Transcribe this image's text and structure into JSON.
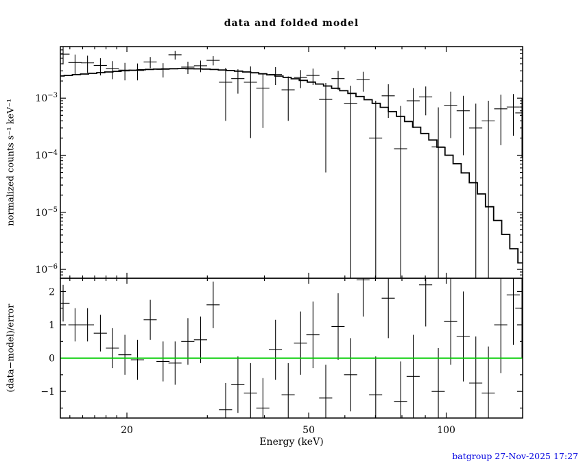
{
  "title": "data and folded model",
  "footer": {
    "text": "batgroup 27-Nov-2025 17:27",
    "color": "#0000e0"
  },
  "chart_data": {
    "type": "line",
    "title": "data and folded model",
    "xlabel": "Energy (keV)",
    "x_scale": "log",
    "x_range": [
      14.3,
      147.0
    ],
    "x_major_ticks": [
      20,
      50,
      100
    ],
    "x_minor_ticks": [
      15,
      16,
      17,
      18,
      19,
      30,
      40,
      60,
      70,
      80,
      90
    ],
    "ink_color": "#000000",
    "panels": [
      {
        "name": "spectrum",
        "ylabel": "normalized counts s⁻¹ keV⁻¹",
        "y_scale": "log",
        "y_range": [
          7e-07,
          0.008
        ],
        "y_major_ticks": [
          {
            "v": 0.001,
            "exp": "−3"
          },
          {
            "v": 0.0001,
            "exp": "−4"
          },
          {
            "v": 1e-05,
            "exp": "−5"
          },
          {
            "v": 1e-06,
            "exp": "−6"
          }
        ],
        "model_histogram": {
          "bin_edges": [
            14.0,
            14.58,
            15.19,
            15.83,
            16.49,
            17.18,
            17.89,
            18.64,
            19.42,
            20.23,
            21.07,
            21.95,
            22.86,
            23.82,
            24.81,
            25.84,
            26.92,
            28.04,
            29.21,
            30.43,
            31.7,
            33.02,
            34.39,
            35.83,
            37.32,
            38.87,
            40.49,
            42.18,
            43.94,
            45.77,
            47.68,
            49.66,
            51.73,
            53.89,
            56.13,
            58.47,
            60.91,
            63.45,
            66.09,
            68.84,
            71.71,
            74.7,
            77.81,
            81.05,
            84.43,
            87.94,
            91.61,
            95.42,
            99.4,
            103.54,
            107.85,
            112.34,
            117.02,
            121.9,
            126.98,
            132.27,
            137.78,
            143.52,
            149.5
          ],
          "values": [
            0.00245,
            0.0025,
            0.00258,
            0.00265,
            0.00272,
            0.0028,
            0.00288,
            0.00295,
            0.00302,
            0.00308,
            0.00314,
            0.00319,
            0.00323,
            0.00326,
            0.00328,
            0.00329,
            0.00328,
            0.00326,
            0.00323,
            0.00318,
            0.00312,
            0.00305,
            0.00297,
            0.00288,
            0.00278,
            0.00267,
            0.00256,
            0.00244,
            0.00231,
            0.00218,
            0.00205,
            0.00191,
            0.00177,
            0.00163,
            0.00149,
            0.00135,
            0.00121,
            0.00107,
            0.00094,
            0.00081,
            0.00069,
            0.00058,
            0.00048,
            0.00039,
            0.00031,
            0.00024,
            0.000185,
            0.000138,
            0.0001,
            7.1e-05,
            4.9e-05,
            3.3e-05,
            2.1e-05,
            1.25e-05,
            7.2e-06,
            4.1e-06,
            2.3e-06,
            1.3e-06
          ]
        },
        "data_points": {
          "e": [
            14.5,
            15.4,
            16.4,
            17.5,
            18.6,
            19.8,
            21.1,
            22.5,
            24.0,
            25.5,
            27.2,
            29.0,
            30.9,
            32.9,
            35.0,
            37.3,
            39.7,
            42.3,
            45.1,
            48.0,
            51.1,
            54.5,
            58.0,
            61.8,
            65.8,
            70.1,
            74.7,
            79.5,
            84.7,
            90.2,
            96.1,
            102.3,
            109.0,
            116.1,
            123.7,
            131.7,
            140.3,
            146.5
          ],
          "xerr": [
            0.48,
            0.51,
            0.54,
            0.58,
            0.61,
            0.65,
            0.7,
            0.74,
            0.79,
            0.84,
            0.9,
            0.96,
            1.02,
            1.09,
            1.16,
            1.23,
            1.31,
            1.4,
            1.49,
            1.58,
            1.69,
            1.8,
            1.91,
            2.04,
            2.17,
            2.31,
            2.46,
            2.62,
            2.79,
            2.98,
            3.17,
            3.38,
            3.6,
            3.83,
            4.08,
            4.35,
            4.63,
            4.84
          ],
          "y": [
            0.0059,
            0.0042,
            0.00415,
            0.00375,
            0.0033,
            0.0031,
            0.00305,
            0.0043,
            0.0032,
            0.00575,
            0.0035,
            0.0037,
            0.0046,
            0.0019,
            0.0022,
            0.0019,
            0.0015,
            0.0026,
            0.0014,
            0.0023,
            0.0025,
            0.00095,
            0.0022,
            0.0008,
            0.0021,
            0.0002,
            0.0011,
            0.00013,
            0.0009,
            0.00105,
            0.00014,
            0.00075,
            0.0006,
            0.0003,
            0.0004,
            0.00065,
            0.0007,
            0.00055
          ],
          "yerr": [
            0.002,
            0.0016,
            0.0014,
            0.00125,
            0.00115,
            0.00105,
            0.001,
            0.00095,
            0.0009,
            0.001,
            0.00085,
            0.00085,
            0.00085,
            0.0015,
            0.001,
            0.0017,
            0.0012,
            0.0009,
            0.001,
            0.0008,
            0.0008,
            0.0009,
            0.0008,
            0.00085,
            0.0008,
            0.0007,
            0.00065,
            0.0006,
            0.0006,
            0.00055,
            0.00055,
            0.00055,
            0.0005,
            0.0005,
            0.0005,
            0.0005,
            0.00048,
            0.00046
          ]
        }
      },
      {
        "name": "residuals",
        "ylabel": "(data−model)/error",
        "y_scale": "linear",
        "y_range": [
          -1.8,
          2.4
        ],
        "y_major_ticks": [
          -1,
          0,
          1,
          2
        ],
        "y_minor_ticks": [
          -1.5,
          -0.5,
          0.5,
          1.5
        ],
        "zero_line_color": "#00cc00",
        "points": {
          "e": [
            14.5,
            15.4,
            16.4,
            17.5,
            18.6,
            19.8,
            21.1,
            22.5,
            24.0,
            25.5,
            27.2,
            29.0,
            30.9,
            32.9,
            35.0,
            37.3,
            39.7,
            42.3,
            45.1,
            48.0,
            51.1,
            54.5,
            58.0,
            61.8,
            65.8,
            70.1,
            74.7,
            79.5,
            84.7,
            90.2,
            96.1,
            102.3,
            109.0,
            116.1,
            123.7,
            131.7,
            140.3,
            146.5
          ],
          "xerr": [
            0.48,
            0.51,
            0.54,
            0.58,
            0.61,
            0.65,
            0.7,
            0.74,
            0.79,
            0.84,
            0.9,
            0.96,
            1.02,
            1.09,
            1.16,
            1.23,
            1.31,
            1.4,
            1.49,
            1.58,
            1.69,
            1.8,
            1.91,
            2.04,
            2.17,
            2.31,
            2.46,
            2.62,
            2.79,
            2.98,
            3.17,
            3.38,
            3.6,
            3.83,
            4.08,
            4.35,
            4.63,
            4.84
          ],
          "y": [
            1.65,
            1.0,
            1.0,
            0.75,
            0.3,
            0.1,
            -0.05,
            1.15,
            -0.1,
            -0.15,
            0.5,
            0.55,
            1.6,
            -1.55,
            -0.8,
            -1.05,
            -1.5,
            0.25,
            -1.1,
            0.45,
            0.7,
            -1.2,
            0.95,
            -0.5,
            2.35,
            -1.1,
            1.8,
            -1.3,
            -0.55,
            2.2,
            -1.0,
            1.1,
            0.65,
            -0.75,
            -1.05,
            1.0,
            1.9,
            1.5
          ],
          "yerr": [
            0.55,
            0.5,
            0.5,
            0.55,
            0.6,
            0.6,
            0.6,
            0.6,
            0.6,
            0.65,
            0.7,
            0.7,
            0.7,
            0.8,
            0.85,
            0.9,
            0.9,
            0.9,
            0.95,
            0.95,
            1.0,
            1.0,
            1.0,
            1.1,
            1.1,
            1.15,
            1.2,
            1.2,
            1.25,
            1.25,
            1.3,
            1.3,
            1.35,
            1.4,
            1.4,
            1.45,
            1.5,
            1.5
          ]
        }
      }
    ]
  }
}
